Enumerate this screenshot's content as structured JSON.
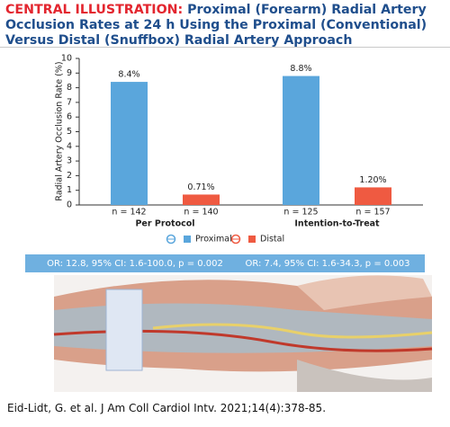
{
  "chart_data": {
    "type": "bar",
    "title_prefix": "CENTRAL ILLUSTRATION:",
    "title": "Proximal (Forearm) Radial Artery Occlusion Rates at 24 h Using the Proximal (Conventional) Versus Distal (Snuffbox) Radial Artery Approach",
    "ylabel": "Radial Artery Occlusion Rate (%)",
    "categories": [
      "Per Protocol",
      "Intention-to-Treat"
    ],
    "series": [
      {
        "name": "Proximal",
        "color": "#5aa6dc",
        "values": [
          8.4,
          8.8
        ],
        "value_labels": [
          "8.4%",
          "8.8%"
        ],
        "n_labels": [
          "n = 142",
          "n = 125"
        ]
      },
      {
        "name": "Distal",
        "color": "#ef5a41",
        "values": [
          0.71,
          1.2
        ],
        "value_labels": [
          "0.71%",
          "1.20%"
        ],
        "n_labels": [
          "n = 140",
          "n = 157"
        ]
      }
    ],
    "ylim": [
      0,
      10
    ],
    "yticks": [
      0,
      1,
      2,
      3,
      4,
      5,
      6,
      7,
      8,
      9,
      10
    ],
    "legend": "bottom",
    "annotations": [
      "OR: 12.8, 95% CI: 1.6-100.0, p = 0.002",
      "OR: 7.4, 95% CI: 1.6-34.3, p = 0.003"
    ],
    "citation": "Eid-Lidt, G. et al. J Am Coll Cardiol Intv. 2021;14(4):378-85."
  }
}
